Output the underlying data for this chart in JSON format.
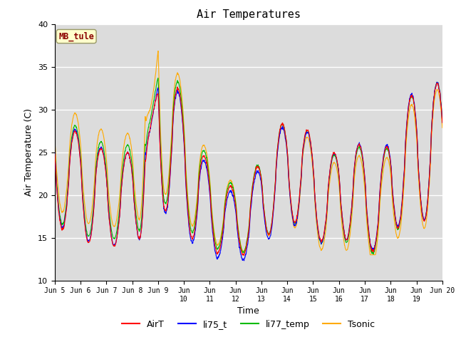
{
  "title": "Air Temperatures",
  "xlabel": "Time",
  "ylabel": "Air Temperature (C)",
  "ylim": [
    10,
    40
  ],
  "xlim": [
    0,
    15
  ],
  "station_label": "MB_tule",
  "colors": {
    "AirT": "#ff0000",
    "li75_t": "#0000ff",
    "li77_temp": "#00bb00",
    "Tsonic": "#ffaa00"
  },
  "bg_color": "#dcdcdc",
  "yticks": [
    10,
    15,
    20,
    25,
    30,
    35,
    40
  ],
  "tick_labels_1digit": [
    "Jun 5",
    "Jun 6",
    "Jun 7",
    "Jun 8",
    "Jun 9"
  ],
  "tick_labels_2digit": [
    "Jun\n10",
    "Jun\n11",
    "Jun\n12",
    "Jun\n13",
    "Jun\n14",
    "Jun\n15",
    "Jun\n16",
    "Jun\n17",
    "Jun\n18",
    "Jun\n19",
    "Jun 20"
  ]
}
